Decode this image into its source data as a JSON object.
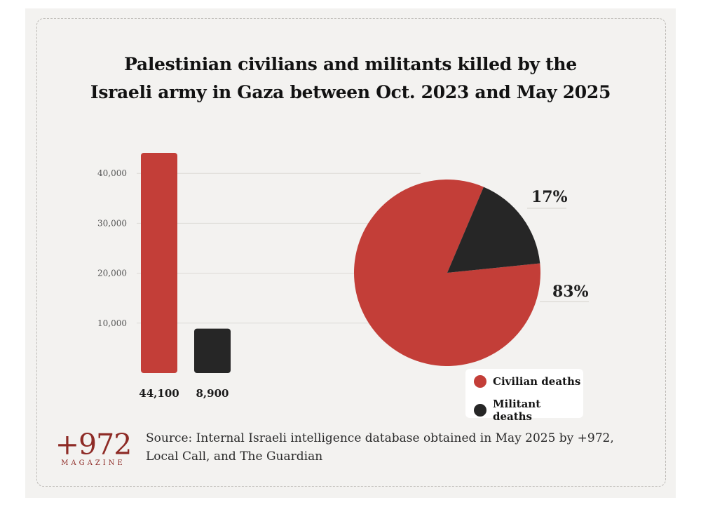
{
  "title_lines": [
    "Palestinian civilians and militants killed by the",
    "Israeli army in Gaza between Oct. 2023 and May 2025"
  ],
  "colors": {
    "civilian": "#c33e38",
    "militant": "#262626",
    "grid": "#dcdad6"
  },
  "chart_data": [
    {
      "type": "bar",
      "categories": [
        "Civilian deaths",
        "Militant deaths"
      ],
      "values": [
        44100,
        8900
      ],
      "value_labels": [
        "44,100",
        "8,900"
      ],
      "ylim": [
        0,
        45000
      ],
      "yticks": [
        10000,
        20000,
        30000,
        40000
      ],
      "ytick_labels": [
        "10,000",
        "20,000",
        "30,000",
        "40,000"
      ],
      "grid": true
    },
    {
      "type": "pie",
      "categories": [
        "Civilian deaths",
        "Militant deaths"
      ],
      "values": [
        83,
        17
      ],
      "value_labels": [
        "83%",
        "17%"
      ]
    }
  ],
  "legend": [
    {
      "label": "Civilian deaths",
      "color": "#c33e38"
    },
    {
      "label": "Militant deaths",
      "color": "#262626"
    }
  ],
  "logo": {
    "mark": "+972",
    "sub": "MAGAZINE"
  },
  "source": "Source: Internal Israeli intelligence database obtained in May 2025 by +972, Local Call, and The Guardian"
}
